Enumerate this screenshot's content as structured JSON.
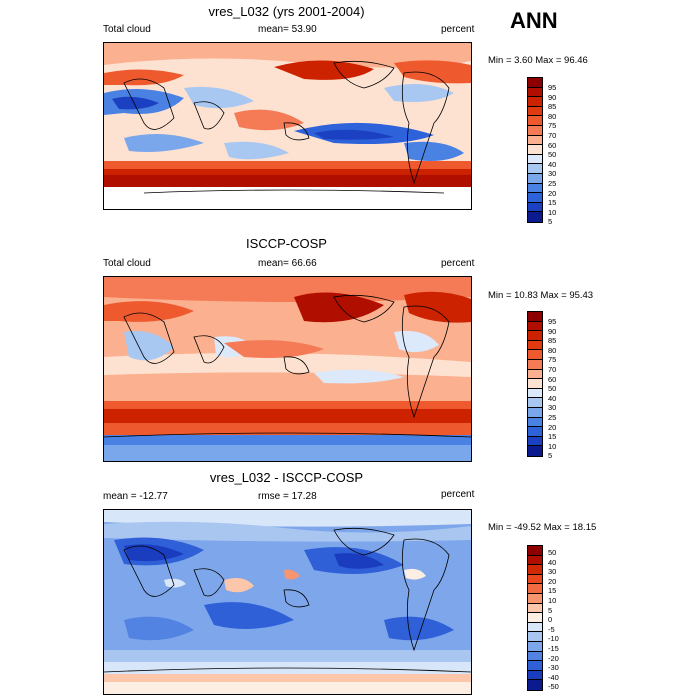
{
  "season": "ANN",
  "chart_data": [
    {
      "type": "heatmap",
      "title": "vres_L032 (yrs 2001-2004)",
      "left_label": "Total cloud",
      "center_label": "mean=  53.90",
      "right_label": "percent",
      "min_max": "Min =   3.60 Max =  96.46",
      "levels": [
        "95",
        "90",
        "85",
        "80",
        "75",
        "70",
        "60",
        "50",
        "40",
        "30",
        "25",
        "20",
        "15",
        "10",
        "5"
      ],
      "colors": [
        "#8e0000",
        "#b00f00",
        "#cc2200",
        "#e03a10",
        "#ee5a2e",
        "#f47b55",
        "#fbb090",
        "#fde2d2",
        "#dbe9fb",
        "#a8c8f2",
        "#7aa7eb",
        "#4a82e3",
        "#2e62da",
        "#1b40c2",
        "#0b1a8e"
      ]
    },
    {
      "type": "heatmap",
      "title": "ISCCP-COSP",
      "left_label": "Total cloud",
      "center_label": "mean=  66.66",
      "right_label": "percent",
      "min_max": "Min =  10.83 Max =  95.43",
      "levels": [
        "95",
        "90",
        "85",
        "80",
        "75",
        "70",
        "60",
        "50",
        "40",
        "30",
        "25",
        "20",
        "15",
        "10",
        "5"
      ],
      "colors": [
        "#8e0000",
        "#b00f00",
        "#cc2200",
        "#e03a10",
        "#ee5a2e",
        "#f47b55",
        "#fbb090",
        "#fde2d2",
        "#dbe9fb",
        "#a8c8f2",
        "#7aa7eb",
        "#4a82e3",
        "#2e62da",
        "#1b40c2",
        "#0b1a8e"
      ]
    },
    {
      "type": "heatmap",
      "title": "vres_L032 - ISCCP-COSP",
      "left_label": "mean = -12.77",
      "center_label": "rmse =  17.28",
      "right_label": "percent",
      "min_max": "Min = -49.52 Max =  18.15",
      "levels": [
        "50",
        "40",
        "30",
        "20",
        "15",
        "10",
        "5",
        "0",
        "-5",
        "-10",
        "-15",
        "-20",
        "-30",
        "-40",
        "-50"
      ],
      "colors": [
        "#8e0000",
        "#b00f00",
        "#d02a05",
        "#e8481e",
        "#f26a42",
        "#f7956f",
        "#fcc6ab",
        "#fdeee4",
        "#d8e6fa",
        "#a9c6f1",
        "#7ea6ea",
        "#5283e2",
        "#2f60d8",
        "#1a3dbf",
        "#0b1a8e"
      ]
    }
  ]
}
